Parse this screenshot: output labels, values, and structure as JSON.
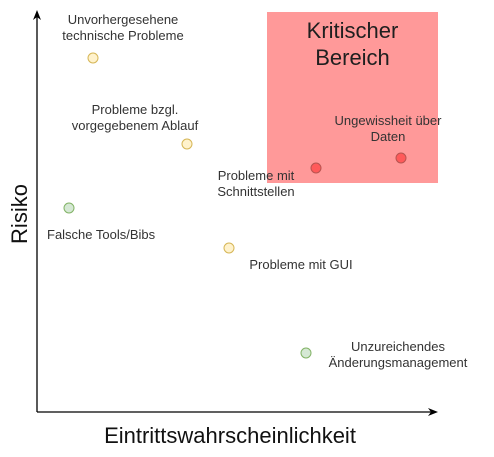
{
  "diagram": {
    "axes": {
      "x_title": "Eintrittswahrscheinlichkeit",
      "y_title": "Risiko"
    },
    "critical_zone": {
      "title": "Kritischer\nBereich",
      "color": "#ff9999"
    },
    "items": [
      {
        "key": "unvorhergesehene",
        "label": "Unvorhergesehene\ntechnische Probleme",
        "status": "yellow"
      },
      {
        "key": "ablauf",
        "label": "Probleme bzgl.\nvorgegebenem Ablauf",
        "status": "yellow"
      },
      {
        "key": "schnittstellen",
        "label": "Probleme mit\nSchnittstellen",
        "status": "red"
      },
      {
        "key": "daten",
        "label": "Ungewissheit über\nDaten",
        "status": "red"
      },
      {
        "key": "tools",
        "label": "Falsche Tools/Bibs",
        "status": "green"
      },
      {
        "key": "gui",
        "label": "Probleme mit GUI",
        "status": "yellow"
      },
      {
        "key": "aenderung",
        "label": "Unzureichendes\nÄnderungsmanagement",
        "status": "green"
      }
    ],
    "status_colors": {
      "yellow": {
        "fill": "#fff2cc",
        "stroke": "#d6b656"
      },
      "red": {
        "fill": "#f8cecc",
        "stroke": "#b85450"
      },
      "green": {
        "fill": "#d5e8d4",
        "stroke": "#82b366"
      }
    },
    "dot_colors_in_zone": {
      "fill": "#ff5a5a",
      "stroke": "#b85450"
    }
  }
}
